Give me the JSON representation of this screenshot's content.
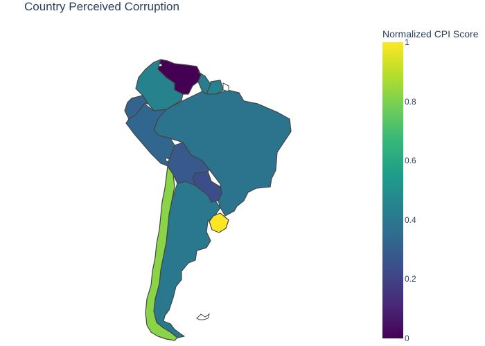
{
  "title": "Country Perceived Corruption",
  "colorbar": {
    "title": "Normalized CPI Score",
    "ticks": [
      "1",
      "0.8",
      "0.6",
      "0.4",
      "0.2",
      "0"
    ],
    "tick_values": [
      1,
      0.8,
      0.6,
      0.4,
      0.2,
      0
    ],
    "colorscale": [
      "#fde725",
      "#b5de2b",
      "#6ece58",
      "#35b779",
      "#1f9e89",
      "#26828e",
      "#31688e",
      "#3e4989",
      "#482878",
      "#440154"
    ]
  },
  "chart_data": {
    "type": "choropleth",
    "scope": "south america",
    "colorscale": "Viridis",
    "zrange": [
      0,
      1
    ],
    "countries": [
      {
        "name": "Venezuela",
        "value": 0.0
      },
      {
        "name": "Colombia",
        "value": 0.45
      },
      {
        "name": "Guyana",
        "value": 0.42
      },
      {
        "name": "Suriname",
        "value": 0.45
      },
      {
        "name": "Ecuador",
        "value": 0.32
      },
      {
        "name": "Peru",
        "value": 0.33
      },
      {
        "name": "Brazil",
        "value": 0.38
      },
      {
        "name": "Bolivia",
        "value": 0.28
      },
      {
        "name": "Paraguay",
        "value": 0.24
      },
      {
        "name": "Argentina",
        "value": 0.4
      },
      {
        "name": "Chile",
        "value": 0.82
      },
      {
        "name": "Uruguay",
        "value": 1.0
      }
    ]
  }
}
